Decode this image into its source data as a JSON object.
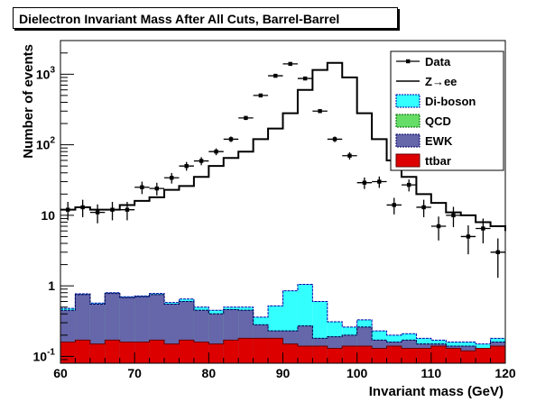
{
  "chart_data": {
    "type": "histogram",
    "title": "Dielectron Invariant Mass After All Cuts, Barrel-Barrel",
    "xlabel": "Invariant mass (GeV)",
    "ylabel": "Number of events",
    "xlim": [
      60,
      120
    ],
    "ylim": [
      0.08,
      3000
    ],
    "yscale": "log",
    "bin_width": 2,
    "x_ticks": [
      60,
      70,
      80,
      90,
      100,
      110,
      120
    ],
    "x_tick_labels": [
      "60",
      "70",
      "80",
      "90",
      "100",
      "110",
      "120"
    ],
    "y_tick_labels": [
      {
        "value": 0.1,
        "base": "10",
        "exp": "-1"
      },
      {
        "value": 1,
        "base": "1",
        "exp": ""
      },
      {
        "value": 10,
        "base": "10",
        "exp": ""
      },
      {
        "value": 100,
        "base": "10",
        "exp": "2"
      },
      {
        "value": 1000,
        "base": "10",
        "exp": "3"
      }
    ],
    "legend_position": "top-right",
    "legend": [
      {
        "label": "Data",
        "style": "marker",
        "color": "#000000"
      },
      {
        "label": "Z→ee",
        "style": "line",
        "color": "#000000"
      },
      {
        "label": "Di-boson",
        "style": "fill",
        "color": "#33ffff",
        "border": "#0000aa"
      },
      {
        "label": "QCD",
        "style": "fill",
        "color": "#66dd66",
        "border": "#006600"
      },
      {
        "label": "EWK",
        "style": "fill",
        "color": "#6666aa",
        "border": "#000066"
      },
      {
        "label": "ttbar",
        "style": "fill",
        "color": "#dd0000",
        "border": "#660000"
      }
    ],
    "stack_bins_x": [
      60,
      62,
      64,
      66,
      68,
      70,
      72,
      74,
      76,
      78,
      80,
      82,
      84,
      86,
      88,
      90,
      92,
      94,
      96,
      98,
      100,
      102,
      104,
      106,
      108,
      110,
      112,
      114,
      116,
      118
    ],
    "series": [
      {
        "name": "ttbar",
        "values": [
          0.16,
          0.17,
          0.15,
          0.17,
          0.16,
          0.16,
          0.17,
          0.15,
          0.17,
          0.16,
          0.15,
          0.17,
          0.18,
          0.18,
          0.18,
          0.15,
          0.14,
          0.14,
          0.13,
          0.14,
          0.14,
          0.13,
          0.14,
          0.13,
          0.13,
          0.14,
          0.13,
          0.12,
          0.13,
          0.14
        ]
      },
      {
        "name": "EWK",
        "values": [
          0.45,
          0.75,
          0.55,
          0.78,
          0.68,
          0.7,
          0.75,
          0.55,
          0.6,
          0.45,
          0.4,
          0.46,
          0.45,
          0.28,
          0.23,
          0.23,
          0.27,
          0.18,
          0.19,
          0.2,
          0.26,
          0.17,
          0.16,
          0.17,
          0.15,
          0.15,
          0.14,
          0.14,
          0.13,
          0.16
        ]
      },
      {
        "name": "QCD",
        "values": [
          0.45,
          0.75,
          0.55,
          0.78,
          0.68,
          0.7,
          0.75,
          0.55,
          0.6,
          0.45,
          0.4,
          0.46,
          0.45,
          0.28,
          0.23,
          0.23,
          0.27,
          0.18,
          0.19,
          0.2,
          0.26,
          0.17,
          0.16,
          0.17,
          0.15,
          0.15,
          0.14,
          0.14,
          0.13,
          0.16
        ]
      },
      {
        "name": "Di-boson",
        "values": [
          0.48,
          0.77,
          0.57,
          0.8,
          0.7,
          0.72,
          0.78,
          0.58,
          0.65,
          0.5,
          0.45,
          0.5,
          0.5,
          0.36,
          0.52,
          0.85,
          1.05,
          0.6,
          0.31,
          0.26,
          0.33,
          0.23,
          0.2,
          0.21,
          0.18,
          0.17,
          0.16,
          0.16,
          0.15,
          0.18
        ]
      },
      {
        "name": "Z→ee",
        "values": [
          12,
          13,
          12,
          12,
          14,
          16,
          18,
          23,
          26,
          35,
          50,
          65,
          80,
          120,
          170,
          280,
          600,
          1150,
          1450,
          900,
          280,
          120,
          60,
          35,
          20,
          15,
          11,
          10,
          8,
          7,
          6
        ]
      }
    ],
    "zee_bins_x": [
      60,
      62,
      64,
      66,
      68,
      70,
      72,
      74,
      76,
      78,
      80,
      82,
      84,
      86,
      88,
      90,
      92,
      94,
      96,
      98,
      100,
      102,
      104,
      106,
      108,
      110,
      112,
      114,
      116,
      118,
      120
    ],
    "data_points": {
      "x": [
        61,
        63,
        65,
        67,
        69,
        71,
        73,
        75,
        77,
        79,
        81,
        83,
        85,
        87,
        89,
        91,
        93,
        95,
        97,
        99,
        101,
        103,
        105,
        107,
        109,
        111,
        113,
        115,
        117,
        119
      ],
      "y": [
        12,
        13,
        11,
        12,
        12,
        25,
        24,
        34,
        50,
        59,
        80,
        120,
        240,
        500,
        950,
        1400,
        870,
        300,
        120,
        70,
        29,
        30,
        14,
        27,
        13,
        7,
        10,
        5,
        6.5,
        3
      ],
      "yerr": [
        3.5,
        3.6,
        3.3,
        3.5,
        3.5,
        5,
        4.9,
        5.8,
        7.1,
        7.7,
        8.9,
        11,
        15.5,
        22,
        31,
        37,
        29.5,
        17,
        11,
        8.4,
        5.4,
        5.5,
        3.7,
        5.2,
        3.6,
        2.6,
        3.2,
        2.2,
        2.5,
        1.7
      ]
    }
  }
}
